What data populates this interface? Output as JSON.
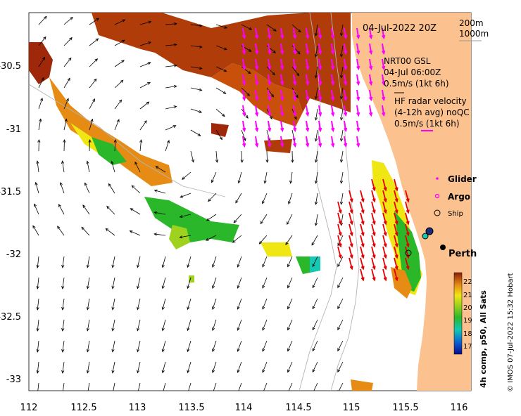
{
  "map": {
    "date_stamp": "04-Jul-2022 20Z",
    "scale": {
      "depth1": "200m",
      "depth2": "1000m"
    },
    "model_info": [
      "NRT00 GSL",
      "04-Jul 06:00Z",
      "0.5m/s (1kt 6h)"
    ],
    "radar_info": [
      "HF radar velocity",
      "(4-12h avg) noQC",
      "0.5m/s (1kt 6h)"
    ],
    "legend": {
      "glider": "Glider",
      "argo": "Argo",
      "ship": "Ship"
    },
    "city": "Perth",
    "colorbar": {
      "label": "4h comp, p50, All Sats",
      "ticks": [
        "22",
        "21",
        "20",
        "19",
        "18",
        "17"
      ],
      "range": [
        16.5,
        22.5
      ]
    },
    "credit": "© IMOS 07-Jul-2022 15:32 Hobart",
    "axes": {
      "x_ticks": [
        "112",
        "112.5",
        "113",
        "113.5",
        "114",
        "114.5",
        "115",
        "115.5",
        "116"
      ],
      "y_ticks": [
        "-30.5",
        "-31",
        "-31.5",
        "-32",
        "-32.5",
        "-33"
      ],
      "xlim": [
        112,
        116.3
      ],
      "ylim": [
        -33.1,
        -30.1
      ]
    },
    "colors": {
      "land": "#fbc28f",
      "current_arrow": "#000000",
      "radar_arrow": "#ff00ff",
      "hf_radar_arrow": "#e60000",
      "bathymetry": "#b4b4b4"
    }
  }
}
